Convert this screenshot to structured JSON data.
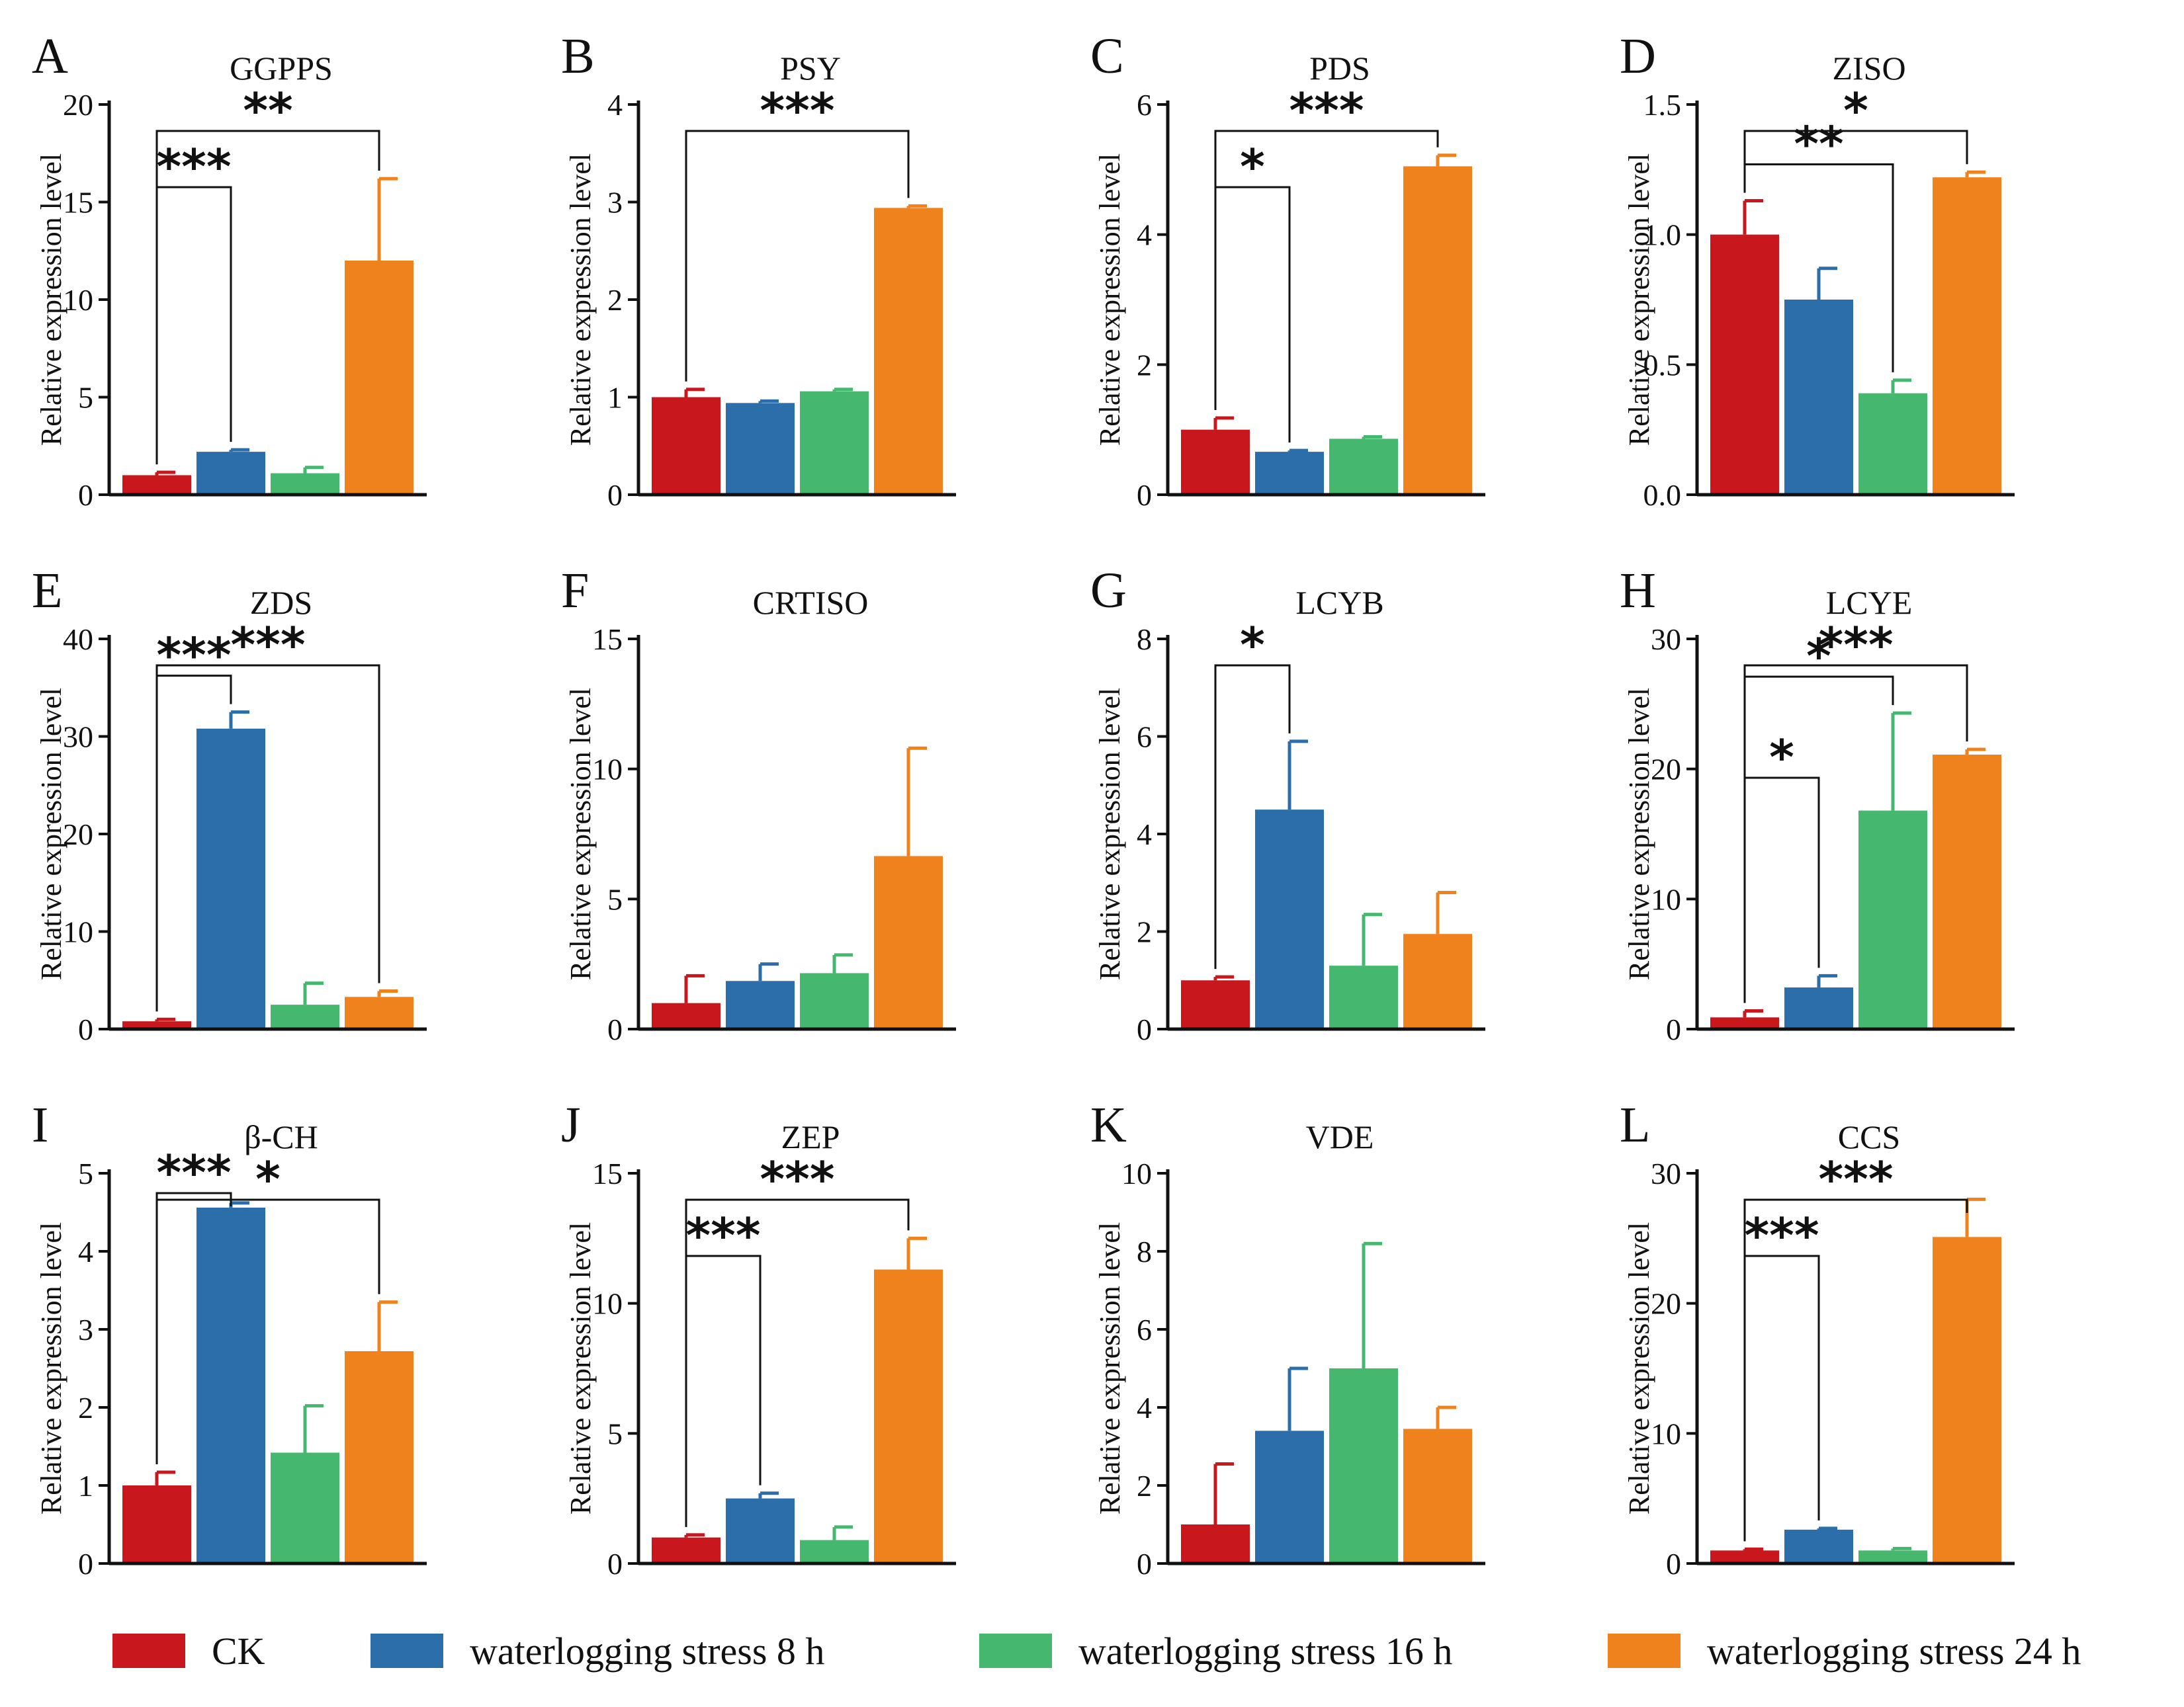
{
  "legend": [
    {
      "label": "CK",
      "color": "#c8181e"
    },
    {
      "label": "waterlogging stress 8 h",
      "color": "#2b6ea9"
    },
    {
      "label": "waterlogging stress 16 h",
      "color": "#45b76f"
    },
    {
      "label": "waterlogging stress 24 h",
      "color": "#f0821e"
    }
  ],
  "chart_data": [
    {
      "panel": "A",
      "type": "bar",
      "title": "GGPPS",
      "ylabel": "Relative expression level",
      "categories": [
        "CK",
        "waterlogging stress 8 h",
        "waterlogging stress 16 h",
        "waterlogging stress 24 h"
      ],
      "values": [
        1.0,
        2.2,
        1.1,
        12.0
      ],
      "errors": [
        0.15,
        0.1,
        0.3,
        4.2
      ],
      "ylim": [
        0,
        20
      ],
      "yticks": [
        0,
        5,
        10,
        15,
        20
      ],
      "ytick_labels": [
        "0",
        "5",
        "10",
        "15",
        "20"
      ],
      "significance": [
        {
          "from": 0,
          "to": 1,
          "label": "***"
        },
        {
          "from": 0,
          "to": 3,
          "label": "**"
        }
      ]
    },
    {
      "panel": "B",
      "type": "bar",
      "title": "PSY",
      "ylabel": "Relative expression level",
      "categories": [
        "CK",
        "waterlogging stress 8 h",
        "waterlogging stress 16 h",
        "waterlogging stress 24 h"
      ],
      "values": [
        1.0,
        0.94,
        1.06,
        2.94
      ],
      "errors": [
        0.08,
        0.02,
        0.02,
        0.02
      ],
      "ylim": [
        0,
        4
      ],
      "yticks": [
        0,
        1,
        2,
        3,
        4
      ],
      "ytick_labels": [
        "0",
        "1",
        "2",
        "3",
        "4"
      ],
      "significance": [
        {
          "from": 0,
          "to": 3,
          "label": "***"
        }
      ]
    },
    {
      "panel": "C",
      "type": "bar",
      "title": "PDS",
      "ylabel": "Relative expression level",
      "categories": [
        "CK",
        "waterlogging stress 8 h",
        "waterlogging stress 16 h",
        "waterlogging stress 24 h"
      ],
      "values": [
        1.0,
        0.66,
        0.86,
        5.05
      ],
      "errors": [
        0.18,
        0.02,
        0.03,
        0.17
      ],
      "ylim": [
        0,
        6
      ],
      "yticks": [
        0,
        2,
        4,
        6
      ],
      "ytick_labels": [
        "0",
        "2",
        "4",
        "6"
      ],
      "significance": [
        {
          "from": 0,
          "to": 1,
          "label": "*"
        },
        {
          "from": 0,
          "to": 3,
          "label": "***"
        }
      ]
    },
    {
      "panel": "D",
      "type": "bar",
      "title": "ZISO",
      "ylabel": "Relative expression level",
      "categories": [
        "CK",
        "waterlogging stress 8 h",
        "waterlogging stress 16 h",
        "waterlogging stress 24 h"
      ],
      "values": [
        1.0,
        0.75,
        0.39,
        1.22
      ],
      "errors": [
        0.13,
        0.12,
        0.05,
        0.02
      ],
      "ylim": [
        0,
        1.5
      ],
      "yticks": [
        0,
        0.5,
        1.0,
        1.5
      ],
      "ytick_labels": [
        "0.0",
        "0.5",
        "1.0",
        "1.5"
      ],
      "significance": [
        {
          "from": 0,
          "to": 2,
          "label": "**"
        },
        {
          "from": 0,
          "to": 3,
          "label": "*"
        }
      ]
    },
    {
      "panel": "E",
      "type": "bar",
      "title": "ZDS",
      "ylabel": "Relative expression level",
      "categories": [
        "CK",
        "waterlogging stress 8 h",
        "waterlogging stress 16 h",
        "waterlogging stress 24 h"
      ],
      "values": [
        0.8,
        30.8,
        2.5,
        3.3
      ],
      "errors": [
        0.2,
        1.7,
        2.2,
        0.6
      ],
      "ylim": [
        0,
        40
      ],
      "yticks": [
        0,
        10,
        20,
        30,
        40
      ],
      "ytick_labels": [
        "0",
        "10",
        "20",
        "30",
        "40"
      ],
      "significance": [
        {
          "from": 0,
          "to": 1,
          "label": "***"
        },
        {
          "from": 0,
          "to": 3,
          "label": "***"
        }
      ]
    },
    {
      "panel": "F",
      "type": "bar",
      "title": "CRTISO",
      "ylabel": "Relative expression level",
      "categories": [
        "CK",
        "waterlogging stress 8 h",
        "waterlogging stress 16 h",
        "waterlogging stress 24 h"
      ],
      "values": [
        1.0,
        1.85,
        2.15,
        6.65
      ],
      "errors": [
        1.05,
        0.65,
        0.7,
        4.15
      ],
      "ylim": [
        0,
        15
      ],
      "yticks": [
        0,
        5,
        10,
        15
      ],
      "ytick_labels": [
        "0",
        "5",
        "10",
        "15"
      ],
      "significance": []
    },
    {
      "panel": "G",
      "type": "bar",
      "title": "LCYB",
      "ylabel": "Relative expression level",
      "categories": [
        "CK",
        "waterlogging stress 8 h",
        "waterlogging stress 16 h",
        "waterlogging stress 24 h"
      ],
      "values": [
        1.0,
        4.5,
        1.3,
        1.95
      ],
      "errors": [
        0.07,
        1.4,
        1.05,
        0.85
      ],
      "ylim": [
        0,
        8
      ],
      "yticks": [
        0,
        2,
        4,
        6,
        8
      ],
      "ytick_labels": [
        "0",
        "2",
        "4",
        "6",
        "8"
      ],
      "significance": [
        {
          "from": 0,
          "to": 1,
          "label": "*"
        }
      ]
    },
    {
      "panel": "H",
      "type": "bar",
      "title": "LCYE",
      "ylabel": "Relative expression level",
      "categories": [
        "CK",
        "waterlogging stress 8 h",
        "waterlogging stress 16 h",
        "waterlogging stress 24 h"
      ],
      "values": [
        0.9,
        3.2,
        16.8,
        21.1
      ],
      "errors": [
        0.5,
        0.9,
        7.5,
        0.4
      ],
      "ylim": [
        0,
        30
      ],
      "yticks": [
        0,
        10,
        20,
        30
      ],
      "ytick_labels": [
        "0",
        "10",
        "20",
        "30"
      ],
      "significance": [
        {
          "from": 0,
          "to": 1,
          "label": "*"
        },
        {
          "from": 0,
          "to": 2,
          "label": "*"
        },
        {
          "from": 0,
          "to": 3,
          "label": "***"
        }
      ]
    },
    {
      "panel": "I",
      "type": "bar",
      "title": "β-CH",
      "ylabel": "Relative expression level",
      "categories": [
        "CK",
        "waterlogging stress 8 h",
        "waterlogging stress 16 h",
        "waterlogging stress 24 h"
      ],
      "values": [
        1.0,
        4.56,
        1.42,
        2.72
      ],
      "errors": [
        0.17,
        0.06,
        0.6,
        0.63
      ],
      "ylim": [
        0,
        5
      ],
      "yticks": [
        0,
        1,
        2,
        3,
        4,
        5
      ],
      "ytick_labels": [
        "0",
        "1",
        "2",
        "3",
        "4",
        "5"
      ],
      "significance": [
        {
          "from": 0,
          "to": 1,
          "label": "***"
        },
        {
          "from": 0,
          "to": 3,
          "label": "*"
        }
      ]
    },
    {
      "panel": "J",
      "type": "bar",
      "title": "ZEP",
      "ylabel": "Relative expression level",
      "categories": [
        "CK",
        "waterlogging stress 8 h",
        "waterlogging stress 16 h",
        "waterlogging stress 24 h"
      ],
      "values": [
        1.0,
        2.5,
        0.9,
        11.3
      ],
      "errors": [
        0.1,
        0.2,
        0.5,
        1.2
      ],
      "ylim": [
        0,
        15
      ],
      "yticks": [
        0,
        5,
        10,
        15
      ],
      "ytick_labels": [
        "0",
        "5",
        "10",
        "15"
      ],
      "significance": [
        {
          "from": 0,
          "to": 1,
          "label": "***"
        },
        {
          "from": 0,
          "to": 3,
          "label": "***"
        }
      ]
    },
    {
      "panel": "K",
      "type": "bar",
      "title": "VDE",
      "ylabel": "Relative expression level",
      "categories": [
        "CK",
        "waterlogging stress 8 h",
        "waterlogging stress 16 h",
        "waterlogging stress 24 h"
      ],
      "values": [
        1.0,
        3.4,
        5.0,
        3.45
      ],
      "errors": [
        1.55,
        1.6,
        3.2,
        0.55
      ],
      "ylim": [
        0,
        10
      ],
      "yticks": [
        0,
        2,
        4,
        6,
        8,
        10
      ],
      "ytick_labels": [
        "0",
        "2",
        "4",
        "6",
        "8",
        "10"
      ],
      "significance": []
    },
    {
      "panel": "L",
      "type": "bar",
      "title": "CCS",
      "ylabel": "Relative expression level",
      "categories": [
        "CK",
        "waterlogging stress 8 h",
        "waterlogging stress 16 h",
        "waterlogging stress 24 h"
      ],
      "values": [
        1.0,
        2.6,
        1.0,
        25.1
      ],
      "errors": [
        0.1,
        0.1,
        0.15,
        2.9
      ],
      "ylim": [
        0,
        30
      ],
      "yticks": [
        0,
        10,
        20,
        30
      ],
      "ytick_labels": [
        "0",
        "10",
        "20",
        "30"
      ],
      "significance": [
        {
          "from": 0,
          "to": 1,
          "label": "***"
        },
        {
          "from": 0,
          "to": 3,
          "label": "***"
        }
      ]
    }
  ]
}
